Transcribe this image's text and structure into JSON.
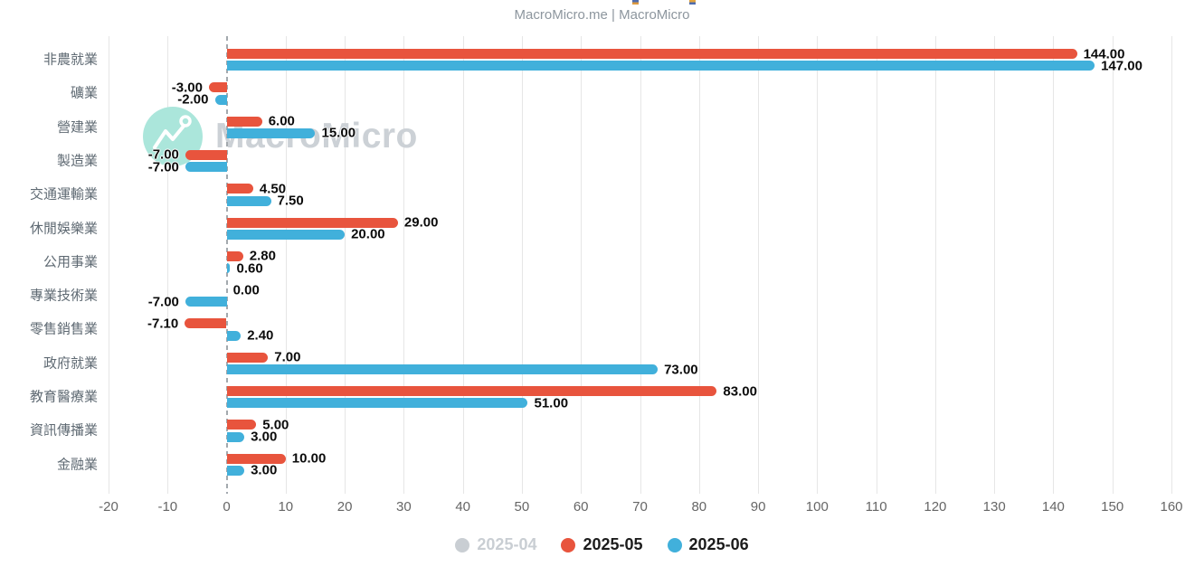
{
  "header": {
    "credit": "MacroMicro.me | MacroMicro",
    "cropped_title_marks": [
      {
        "x": 699,
        "top_color": "#4f6cae",
        "bottom_color": "#dd9a41"
      },
      {
        "x": 762,
        "top_color": "#e2a43e",
        "bottom_color": "#4f6cae"
      }
    ]
  },
  "watermark": {
    "text": "MacroMicro",
    "icon": "zigzag-line-chart",
    "circle_color": "#abe6db",
    "text_color": "#ccd1d6"
  },
  "chart_data": {
    "type": "bar",
    "orientation": "horizontal",
    "title": "",
    "categories": [
      "非農就業",
      "礦業",
      "營建業",
      "製造業",
      "交通運輸業",
      "休閒娛樂業",
      "公用事業",
      "專業技術業",
      "零售銷售業",
      "政府就業",
      "教育醫療業",
      "資訊傳播業",
      "金融業"
    ],
    "series": [
      {
        "name": "2025-04",
        "color": "#c9ced3",
        "visible": false,
        "values": null
      },
      {
        "name": "2025-05",
        "color": "#e8543d",
        "visible": true,
        "values": [
          144,
          -3,
          6,
          -7,
          4.5,
          29,
          2.8,
          0,
          -7.1,
          7,
          83,
          5,
          10
        ]
      },
      {
        "name": "2025-06",
        "color": "#41b0db",
        "visible": true,
        "values": [
          147,
          -2,
          15,
          -7,
          7.5,
          20,
          0.6,
          -7,
          2.4,
          73,
          51,
          3,
          3
        ]
      }
    ],
    "data_label_decimals": 2,
    "x_ticks": [
      -20,
      -10,
      0,
      10,
      20,
      30,
      40,
      50,
      60,
      70,
      80,
      90,
      100,
      110,
      120,
      130,
      140,
      150,
      160
    ],
    "xlim": [
      -20,
      160
    ],
    "grid": true,
    "zero_line_style": "dashed",
    "legend_position": "bottom",
    "axis_text_color": "#666666",
    "data_label_color": "#0b0b0b",
    "disabled_legend_color": "#c9ced3"
  }
}
